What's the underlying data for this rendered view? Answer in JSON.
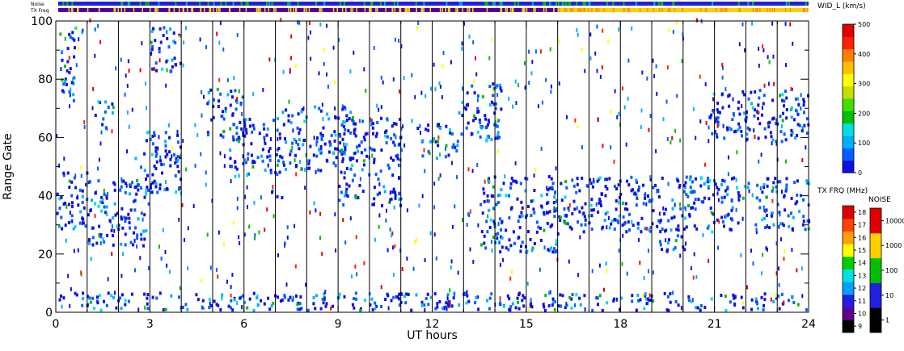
{
  "chart_data": {
    "type": "heatmap",
    "xlabel": "UT hours",
    "ylabel": "Range Gate",
    "xlim": [
      0,
      24
    ],
    "ylim": [
      0,
      100
    ],
    "x_ticks": [
      0,
      3,
      6,
      9,
      12,
      15,
      18,
      21,
      24
    ],
    "y_ticks": [
      0,
      20,
      40,
      60,
      80,
      100
    ],
    "scan_boundaries_ut": [
      1,
      2,
      3,
      4,
      5,
      6,
      7,
      8,
      9,
      10,
      11,
      12,
      13,
      14,
      15,
      16,
      17,
      18,
      19,
      20,
      21,
      22,
      23
    ],
    "echo_bands": [
      {
        "ut_start": 0.0,
        "ut_end": 1.0,
        "gate_start": 28,
        "gate_end": 48
      },
      {
        "ut_start": 0.1,
        "ut_end": 0.6,
        "gate_start": 70,
        "gate_end": 98
      },
      {
        "ut_start": 1.0,
        "ut_end": 3.0,
        "gate_start": 22,
        "gate_end": 45
      },
      {
        "ut_start": 1.2,
        "ut_end": 1.8,
        "gate_start": 62,
        "gate_end": 72
      },
      {
        "ut_start": 2.5,
        "ut_end": 4.0,
        "gate_start": 40,
        "gate_end": 62
      },
      {
        "ut_start": 3.0,
        "ut_end": 4.0,
        "gate_start": 82,
        "gate_end": 98
      },
      {
        "ut_start": 4.8,
        "ut_end": 6.0,
        "gate_start": 58,
        "gate_end": 76
      },
      {
        "ut_start": 5.5,
        "ut_end": 7.2,
        "gate_start": 46,
        "gate_end": 66
      },
      {
        "ut_start": 6.8,
        "ut_end": 7.3,
        "gate_start": 38,
        "gate_end": 42
      },
      {
        "ut_start": 7.2,
        "ut_end": 9.5,
        "gate_start": 48,
        "gate_end": 70
      },
      {
        "ut_start": 9.0,
        "ut_end": 11.0,
        "gate_start": 36,
        "gate_end": 66
      },
      {
        "ut_start": 11.5,
        "ut_end": 12.8,
        "gate_start": 52,
        "gate_end": 64
      },
      {
        "ut_start": 12.8,
        "ut_end": 14.2,
        "gate_start": 58,
        "gate_end": 78
      },
      {
        "ut_start": 13.5,
        "ut_end": 16.0,
        "gate_start": 20,
        "gate_end": 46
      },
      {
        "ut_start": 16.0,
        "ut_end": 24.0,
        "gate_start": 27,
        "gate_end": 46
      },
      {
        "ut_start": 19.2,
        "ut_end": 20.3,
        "gate_start": 20,
        "gate_end": 28
      },
      {
        "ut_start": 20.8,
        "ut_end": 24.0,
        "gate_start": 58,
        "gate_end": 76
      },
      {
        "ut_start": 0.0,
        "ut_end": 24.0,
        "gate_start": 0,
        "gate_end": 6
      }
    ],
    "width_colorbar": {
      "label": "WID_L (km/s)",
      "ticks": [
        0,
        100,
        200,
        300,
        400,
        500
      ],
      "colors": [
        "#1010e0",
        "#0060ff",
        "#00b0ff",
        "#00e0e0",
        "#00c000",
        "#40e000",
        "#c0e000",
        "#ffff00",
        "#ffc000",
        "#ff8000",
        "#ff2000",
        "#e00000"
      ]
    },
    "tx_freq_colorbar": {
      "label": "TX FRQ (MHz)",
      "ticks": [
        9,
        10,
        11,
        12,
        13,
        14,
        15,
        16,
        17,
        18
      ],
      "colors": [
        "#000000",
        "#600090",
        "#2020e0",
        "#00a0ff",
        "#00e0e0",
        "#00d000",
        "#ffff00",
        "#ffa000",
        "#ff4000",
        "#e00000"
      ]
    },
    "noise_colorbar": {
      "label": "NOISE",
      "ticks": [
        "1",
        "10",
        "100",
        "1000",
        "10000"
      ],
      "colors": [
        "#000000",
        "#2020e0",
        "#00c000",
        "#ffd000",
        "#e00000"
      ]
    },
    "top_strips": [
      {
        "label": "Noise",
        "base_color": "#2020e0"
      },
      {
        "label": "TX Freq",
        "segments": [
          {
            "ut_start": 0,
            "ut_end": 16,
            "color": "#5000a0"
          },
          {
            "ut_start": 16,
            "ut_end": 24,
            "color": "#ffd000"
          }
        ]
      }
    ]
  }
}
